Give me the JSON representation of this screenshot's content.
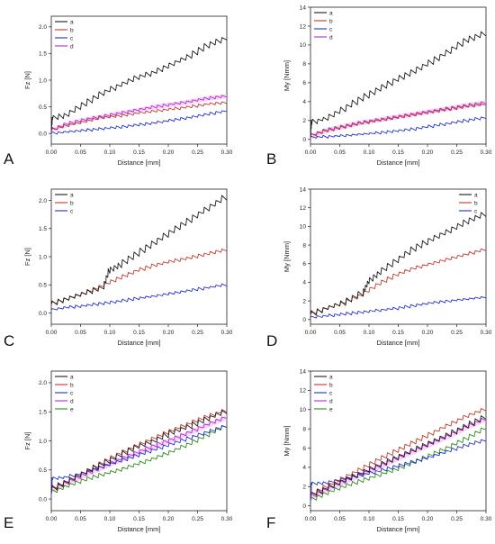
{
  "figure_title": "",
  "colors": {
    "a": "#1a1a1a",
    "b": "#c0392b",
    "c": "#1f2fd0",
    "d": "#b02bd6",
    "e": "#2e8b1e",
    "band": "#f3b6ee"
  },
  "chart_data": [
    {
      "panel": "A",
      "type": "line",
      "xlabel": "Distance [mm]",
      "ylabel": "Fz [N]",
      "xlim": [
        0,
        0.3
      ],
      "ylim": [
        -0.2,
        2.2
      ],
      "xticks": [
        "0.00",
        "0.05",
        "0.10",
        "0.15",
        "0.20",
        "0.25",
        "0.30"
      ],
      "yticks": [
        "0.0",
        "0.5",
        "1.0",
        "1.5",
        "2.0"
      ],
      "legend": [
        "a",
        "b",
        "c",
        "d"
      ],
      "legend_position": "top-left",
      "series": [
        {
          "name": "a",
          "x": [
            0,
            0.002,
            0.03,
            0.06,
            0.09,
            0.12,
            0.15,
            0.18,
            0.21,
            0.24,
            0.27,
            0.3
          ],
          "y": [
            0.05,
            0.28,
            0.35,
            0.55,
            0.75,
            0.9,
            1.05,
            1.15,
            1.3,
            1.45,
            1.65,
            1.78
          ]
        },
        {
          "name": "b",
          "x": [
            0,
            0.03,
            0.06,
            0.09,
            0.12,
            0.15,
            0.18,
            0.21,
            0.24,
            0.27,
            0.3
          ],
          "y": [
            0.05,
            0.15,
            0.22,
            0.3,
            0.33,
            0.38,
            0.42,
            0.46,
            0.5,
            0.55,
            0.58
          ]
        },
        {
          "name": "c",
          "x": [
            0,
            0.03,
            0.06,
            0.09,
            0.12,
            0.15,
            0.18,
            0.21,
            0.24,
            0.27,
            0.3
          ],
          "y": [
            0.0,
            0.03,
            0.06,
            0.09,
            0.12,
            0.16,
            0.2,
            0.25,
            0.3,
            0.36,
            0.42
          ]
        },
        {
          "name": "d",
          "x": [
            0,
            0.03,
            0.06,
            0.09,
            0.12,
            0.15,
            0.18,
            0.21,
            0.24,
            0.27,
            0.3
          ],
          "y": [
            0.05,
            0.18,
            0.26,
            0.32,
            0.38,
            0.44,
            0.5,
            0.55,
            0.6,
            0.66,
            0.7
          ]
        }
      ]
    },
    {
      "panel": "B",
      "type": "line",
      "xlabel": "Distance [mm]",
      "ylabel": "My [Nmm]",
      "xlim": [
        0,
        0.3
      ],
      "ylim": [
        -0.5,
        14
      ],
      "xticks": [
        "0.00",
        "0.05",
        "0.10",
        "0.15",
        "0.20",
        "0.25",
        "0.30"
      ],
      "yticks": [
        "0",
        "2",
        "4",
        "6",
        "8",
        "10",
        "12",
        "14"
      ],
      "legend": [
        "a",
        "b",
        "c",
        "d"
      ],
      "legend_position": "top-left",
      "series": [
        {
          "name": "a",
          "x": [
            0,
            0.002,
            0.03,
            0.06,
            0.09,
            0.12,
            0.15,
            0.18,
            0.21,
            0.24,
            0.27,
            0.3
          ],
          "y": [
            0.3,
            1.8,
            2.2,
            3.2,
            4.3,
            5.3,
            6.3,
            7.2,
            8.2,
            9.3,
            10.5,
            11.2
          ]
        },
        {
          "name": "b",
          "x": [
            0,
            0.03,
            0.06,
            0.09,
            0.12,
            0.15,
            0.18,
            0.21,
            0.24,
            0.27,
            0.3
          ],
          "y": [
            0.3,
            0.9,
            1.3,
            1.7,
            2.0,
            2.3,
            2.6,
            2.9,
            3.2,
            3.5,
            3.7
          ]
        },
        {
          "name": "c",
          "x": [
            0,
            0.03,
            0.06,
            0.09,
            0.12,
            0.15,
            0.18,
            0.21,
            0.24,
            0.27,
            0.3
          ],
          "y": [
            0.2,
            0.3,
            0.4,
            0.55,
            0.7,
            0.9,
            1.1,
            1.4,
            1.7,
            2.0,
            2.3
          ]
        },
        {
          "name": "d",
          "x": [
            0,
            0.03,
            0.06,
            0.09,
            0.12,
            0.15,
            0.18,
            0.21,
            0.24,
            0.27,
            0.3
          ],
          "y": [
            0.3,
            1.0,
            1.4,
            1.8,
            2.1,
            2.4,
            2.7,
            3.0,
            3.3,
            3.6,
            3.9
          ]
        }
      ]
    },
    {
      "panel": "C",
      "type": "line",
      "xlabel": "Distance [mm]",
      "ylabel": "Fz [N]",
      "xlim": [
        0,
        0.3
      ],
      "ylim": [
        -0.2,
        2.2
      ],
      "xticks": [
        "0.00",
        "0.05",
        "0.10",
        "0.15",
        "0.20",
        "0.25",
        "0.30"
      ],
      "yticks": [
        "0.0",
        "0.5",
        "1.0",
        "1.5",
        "2.0"
      ],
      "legend": [
        "a",
        "b",
        "c"
      ],
      "legend_position": "top-left",
      "series": [
        {
          "name": "a",
          "x": [
            0,
            0.03,
            0.06,
            0.09,
            0.1,
            0.12,
            0.15,
            0.18,
            0.21,
            0.24,
            0.27,
            0.3
          ],
          "y": [
            0.15,
            0.25,
            0.35,
            0.45,
            0.75,
            0.85,
            1.05,
            1.25,
            1.45,
            1.65,
            1.85,
            2.05
          ]
        },
        {
          "name": "b",
          "x": [
            0,
            0.03,
            0.06,
            0.09,
            0.12,
            0.15,
            0.18,
            0.21,
            0.24,
            0.27,
            0.3
          ],
          "y": [
            0.15,
            0.25,
            0.35,
            0.48,
            0.62,
            0.75,
            0.85,
            0.92,
            0.98,
            1.05,
            1.12
          ]
        },
        {
          "name": "c",
          "x": [
            0,
            0.03,
            0.06,
            0.09,
            0.12,
            0.15,
            0.18,
            0.21,
            0.24,
            0.27,
            0.3
          ],
          "y": [
            0.05,
            0.1,
            0.13,
            0.17,
            0.21,
            0.26,
            0.3,
            0.35,
            0.4,
            0.45,
            0.5
          ]
        }
      ]
    },
    {
      "panel": "D",
      "type": "line",
      "xlabel": "Distance [mm]",
      "ylabel": "My [Nmm]",
      "xlim": [
        0,
        0.3
      ],
      "ylim": [
        -0.5,
        14
      ],
      "xticks": [
        "0.00",
        "0.05",
        "0.10",
        "0.15",
        "0.20",
        "0.25",
        "0.30"
      ],
      "yticks": [
        "0",
        "2",
        "4",
        "6",
        "8",
        "10",
        "12",
        "14"
      ],
      "legend": [
        "a",
        "b",
        "c"
      ],
      "legend_position": "top-right",
      "series": [
        {
          "name": "a",
          "x": [
            0,
            0.03,
            0.06,
            0.09,
            0.1,
            0.12,
            0.15,
            0.18,
            0.21,
            0.24,
            0.27,
            0.3
          ],
          "y": [
            0.5,
            1.2,
            1.8,
            2.8,
            4.0,
            5.0,
            6.3,
            7.6,
            8.6,
            9.5,
            10.5,
            11.3
          ]
        },
        {
          "name": "b",
          "x": [
            0,
            0.03,
            0.06,
            0.09,
            0.12,
            0.15,
            0.18,
            0.21,
            0.24,
            0.27,
            0.3
          ],
          "y": [
            0.5,
            1.2,
            1.8,
            2.6,
            3.8,
            4.8,
            5.5,
            6.0,
            6.5,
            7.0,
            7.5
          ]
        },
        {
          "name": "c",
          "x": [
            0,
            0.03,
            0.06,
            0.09,
            0.12,
            0.15,
            0.18,
            0.21,
            0.24,
            0.27,
            0.3
          ],
          "y": [
            0.2,
            0.4,
            0.6,
            0.8,
            1.0,
            1.2,
            1.5,
            1.8,
            2.0,
            2.2,
            2.4
          ]
        }
      ]
    },
    {
      "panel": "E",
      "type": "line",
      "xlabel": "Distance [mm]",
      "ylabel": "Fz [N]",
      "xlim": [
        0,
        0.3
      ],
      "ylim": [
        -0.2,
        2.2
      ],
      "xticks": [
        "0.00",
        "0.05",
        "0.10",
        "0.15",
        "0.20",
        "0.25",
        "0.30"
      ],
      "yticks": [
        "0.0",
        "0.5",
        "1.0",
        "1.5",
        "2.0"
      ],
      "legend": [
        "a",
        "b",
        "c",
        "d",
        "e"
      ],
      "legend_position": "top-left",
      "series": [
        {
          "name": "a",
          "x": [
            0,
            0.03,
            0.06,
            0.09,
            0.12,
            0.15,
            0.18,
            0.21,
            0.24,
            0.27,
            0.3
          ],
          "y": [
            0.15,
            0.3,
            0.45,
            0.6,
            0.75,
            0.9,
            1.0,
            1.15,
            1.25,
            1.38,
            1.5
          ]
        },
        {
          "name": "b",
          "x": [
            0,
            0.03,
            0.06,
            0.09,
            0.12,
            0.15,
            0.18,
            0.21,
            0.24,
            0.27,
            0.3
          ],
          "y": [
            0.15,
            0.3,
            0.45,
            0.62,
            0.78,
            0.92,
            1.05,
            1.18,
            1.3,
            1.42,
            1.52
          ]
        },
        {
          "name": "c",
          "x": [
            0,
            0.002,
            0.03,
            0.06,
            0.09,
            0.12,
            0.15,
            0.18,
            0.21,
            0.24,
            0.27,
            0.3
          ],
          "y": [
            0.0,
            0.35,
            0.38,
            0.45,
            0.55,
            0.65,
            0.75,
            0.85,
            0.95,
            1.05,
            1.15,
            1.25
          ]
        },
        {
          "name": "d",
          "x": [
            0,
            0.03,
            0.06,
            0.09,
            0.12,
            0.15,
            0.18,
            0.21,
            0.24,
            0.27,
            0.3
          ],
          "y": [
            0.15,
            0.28,
            0.42,
            0.55,
            0.68,
            0.8,
            0.92,
            1.03,
            1.15,
            1.28,
            1.4
          ]
        },
        {
          "name": "e",
          "x": [
            0,
            0.03,
            0.06,
            0.09,
            0.12,
            0.15,
            0.18,
            0.21,
            0.24,
            0.27,
            0.3
          ],
          "y": [
            0.1,
            0.22,
            0.33,
            0.42,
            0.5,
            0.6,
            0.7,
            0.82,
            0.95,
            1.1,
            1.25
          ]
        }
      ]
    },
    {
      "panel": "F",
      "type": "line",
      "xlabel": "Distance [mm]",
      "ylabel": "My [Nmm]",
      "xlim": [
        0,
        0.3
      ],
      "ylim": [
        -0.5,
        14
      ],
      "xticks": [
        "0.00",
        "0.05",
        "0.10",
        "0.15",
        "0.20",
        "0.25",
        "0.30"
      ],
      "yticks": [
        "0",
        "2",
        "4",
        "6",
        "8",
        "10",
        "12",
        "14"
      ],
      "legend": [
        "a",
        "b",
        "c",
        "d",
        "e"
      ],
      "legend_position": "top-left",
      "series": [
        {
          "name": "a",
          "x": [
            0,
            0.03,
            0.06,
            0.09,
            0.12,
            0.15,
            0.18,
            0.21,
            0.24,
            0.27,
            0.3
          ],
          "y": [
            1.0,
            1.8,
            2.6,
            3.4,
            4.2,
            5.0,
            5.8,
            6.6,
            7.4,
            8.3,
            9.2
          ]
        },
        {
          "name": "b",
          "x": [
            0,
            0.03,
            0.06,
            0.09,
            0.12,
            0.15,
            0.18,
            0.21,
            0.24,
            0.27,
            0.3
          ],
          "y": [
            1.0,
            2.0,
            2.9,
            3.8,
            4.8,
            5.7,
            6.6,
            7.5,
            8.4,
            9.3,
            10.0
          ]
        },
        {
          "name": "c",
          "x": [
            0,
            0.002,
            0.03,
            0.06,
            0.09,
            0.12,
            0.15,
            0.18,
            0.21,
            0.24,
            0.27,
            0.3
          ],
          "y": [
            0.2,
            2.3,
            2.4,
            2.8,
            3.2,
            3.6,
            4.1,
            4.6,
            5.1,
            5.7,
            6.3,
            6.8
          ]
        },
        {
          "name": "d",
          "x": [
            0,
            0.03,
            0.06,
            0.09,
            0.12,
            0.15,
            0.18,
            0.21,
            0.24,
            0.27,
            0.3
          ],
          "y": [
            0.8,
            1.7,
            2.5,
            3.3,
            4.1,
            4.9,
            5.7,
            6.5,
            7.3,
            8.2,
            9.0
          ]
        },
        {
          "name": "e",
          "x": [
            0,
            0.03,
            0.06,
            0.09,
            0.12,
            0.15,
            0.18,
            0.21,
            0.24,
            0.27,
            0.3
          ],
          "y": [
            0.5,
            1.3,
            2.0,
            2.6,
            3.2,
            3.8,
            4.5,
            5.3,
            6.1,
            7.0,
            8.0
          ]
        }
      ]
    }
  ]
}
